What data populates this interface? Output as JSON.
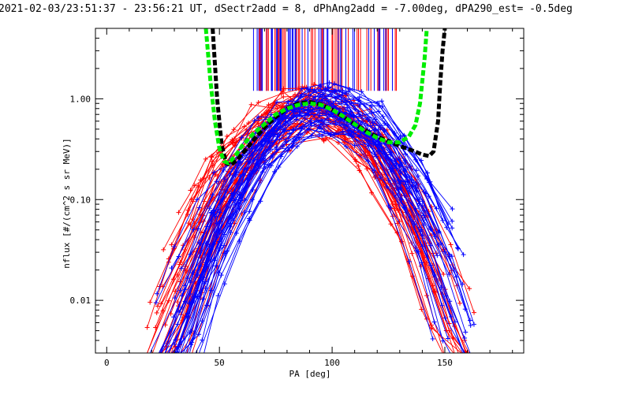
{
  "chart_data": {
    "type": "line",
    "title": "2021-02-03/23:51:37 - 23:56:21 UT, dSectr2add = 8, dPhAng2add = -7.00deg, dPA290_est= -0.5deg",
    "xlabel": "PA [deg]",
    "ylabel": "nflux [#/(cm^2 s sr MeV)]",
    "xlim": [
      -5,
      185
    ],
    "ylim": [
      0.003,
      5
    ],
    "y_scale": "log",
    "grid": false,
    "x_ticks": [
      {
        "value": 0,
        "label": "0"
      },
      {
        "value": 50,
        "label": "50"
      },
      {
        "value": 100,
        "label": "100"
      },
      {
        "value": 150,
        "label": "150"
      }
    ],
    "y_ticks": [
      {
        "value": 0.01,
        "label": "0.01"
      },
      {
        "value": 0.1,
        "label": "0.10"
      },
      {
        "value": 1.0,
        "label": "1.00"
      }
    ],
    "series_red": {
      "color": "#ff0000",
      "count": 45,
      "marker": "+"
    },
    "series_blue": {
      "color": "#0000ff",
      "count": 45,
      "marker": "+"
    },
    "fit_curves": [
      {
        "color": "#000000",
        "style": "dashed-thick",
        "x": [
          47,
          49,
          51,
          53,
          55,
          58,
          62,
          66,
          70,
          75,
          80,
          85,
          90,
          95,
          100,
          105,
          110,
          115,
          120,
          125,
          130,
          135,
          140,
          143,
          145,
          147,
          148,
          149,
          150
        ],
        "y": [
          5,
          1.0,
          0.35,
          0.23,
          0.22,
          0.25,
          0.32,
          0.41,
          0.52,
          0.66,
          0.8,
          0.9,
          0.93,
          0.88,
          0.78,
          0.66,
          0.56,
          0.48,
          0.42,
          0.38,
          0.34,
          0.31,
          0.28,
          0.27,
          0.3,
          0.6,
          1.5,
          3.0,
          5
        ]
      },
      {
        "color": "#00ee00",
        "style": "dashed-thick",
        "x": [
          44,
          46,
          48,
          50,
          52,
          54,
          57,
          60,
          65,
          70,
          75,
          80,
          85,
          90,
          95,
          100,
          105,
          110,
          115,
          120,
          125,
          130,
          134,
          137,
          139,
          140,
          141,
          142
        ],
        "y": [
          5,
          1.5,
          0.6,
          0.32,
          0.24,
          0.23,
          0.27,
          0.34,
          0.45,
          0.56,
          0.7,
          0.8,
          0.87,
          0.9,
          0.87,
          0.78,
          0.67,
          0.56,
          0.47,
          0.41,
          0.37,
          0.37,
          0.42,
          0.55,
          0.9,
          1.5,
          2.5,
          5
        ]
      }
    ],
    "vertical_lines": {
      "x_range": [
        65,
        130
      ],
      "y_from": 1.2,
      "colors": [
        "#ff0000",
        "#0000ff"
      ]
    }
  }
}
